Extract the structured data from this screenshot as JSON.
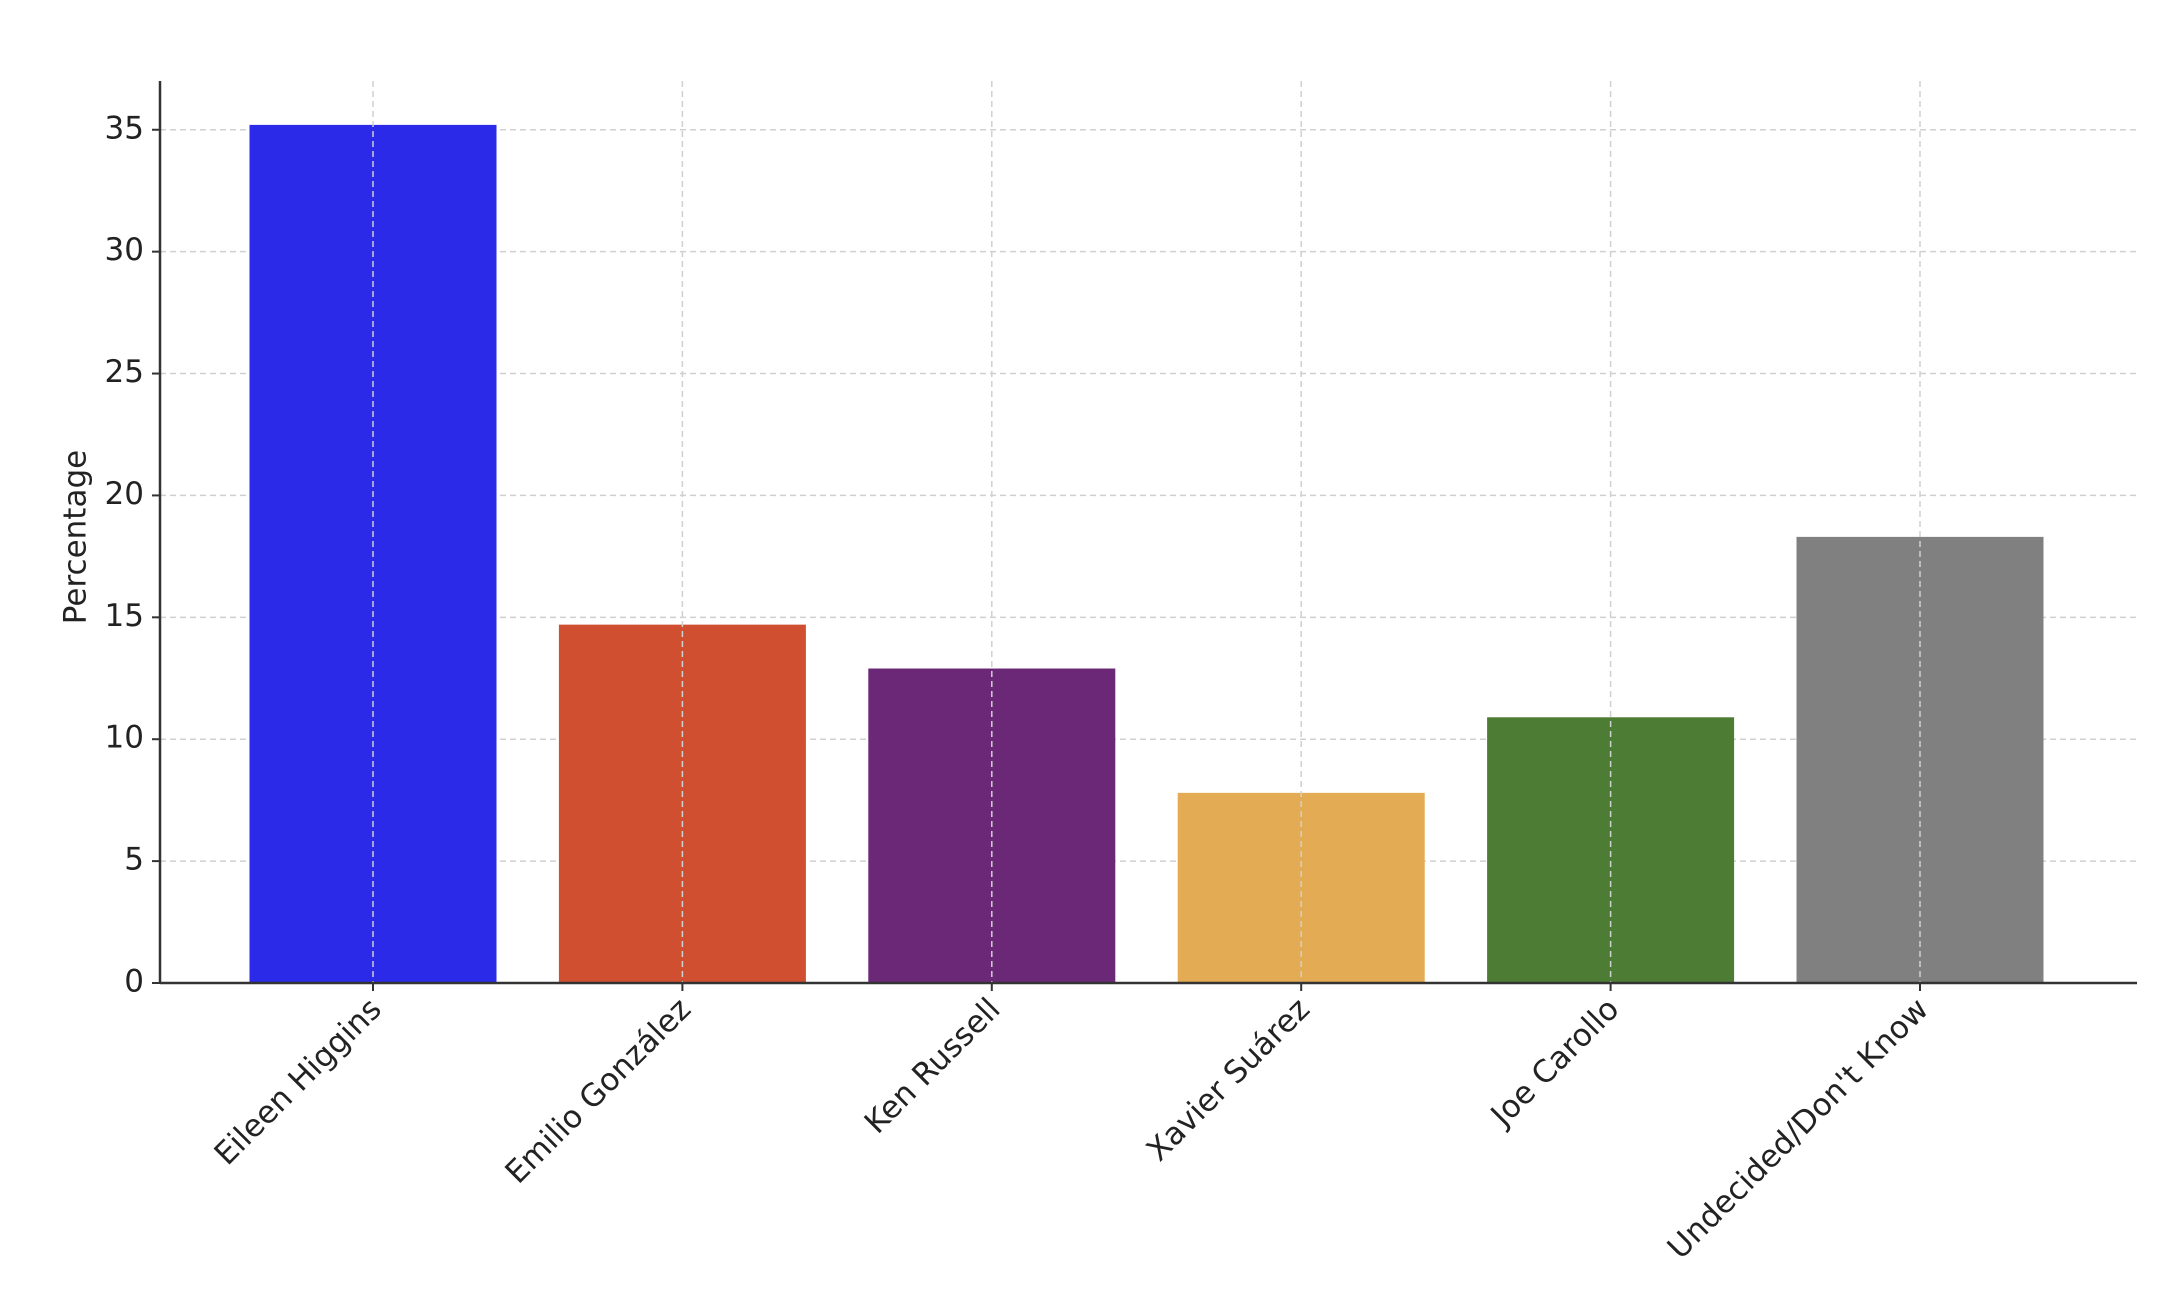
{
  "chart_data": {
    "type": "bar",
    "y_label": "Percentage",
    "categories": [
      "Eileen Higgins",
      "Emilio González",
      "Ken Russell",
      "Xavier Suárez",
      "Joe Carollo",
      "Undecided/Don't Know"
    ],
    "values": [
      35.2,
      14.7,
      12.9,
      7.8,
      10.9,
      18.3
    ],
    "colors": [
      "#2a2ae8",
      "#d14f31",
      "#6a2876",
      "#e3ab53",
      "#4d7c34",
      "#808080"
    ],
    "ylim": [
      0,
      37
    ],
    "yticks": [
      0,
      5,
      10,
      15,
      20,
      25,
      30,
      35
    ],
    "grid": true
  }
}
